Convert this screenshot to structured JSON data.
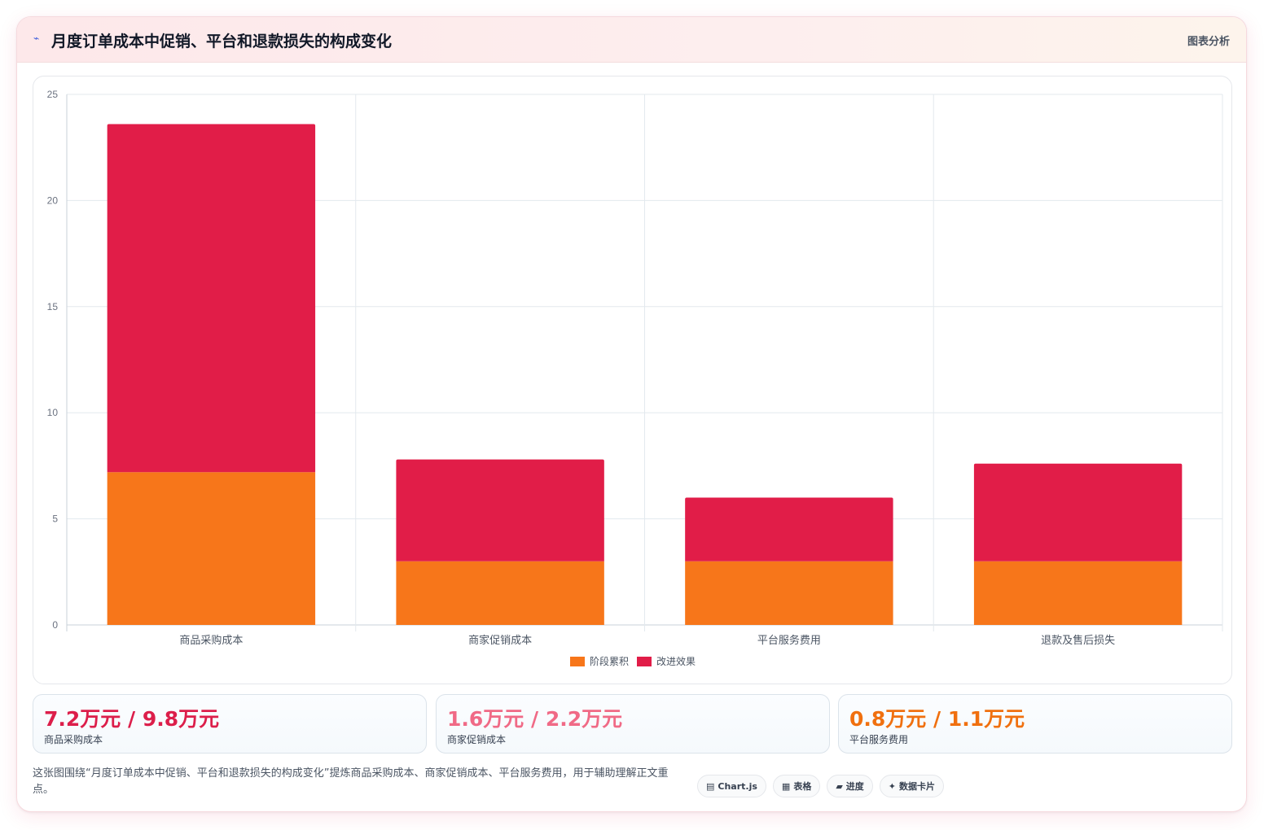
{
  "header": {
    "icon": "line-chart-icon",
    "title": "月度订单成本中促销、平台和退款损失的构成变化",
    "tag": "图表分析"
  },
  "chart_data": {
    "type": "bar",
    "stacked": true,
    "categories": [
      "商品采购成本",
      "商家促销成本",
      "平台服务费用",
      "退款及售后损失"
    ],
    "series": [
      {
        "name": "阶段累积",
        "color": "#f7761a",
        "values": [
          7.2,
          3.0,
          3.0,
          3.0
        ]
      },
      {
        "name": "改进效果",
        "color": "#e11d48",
        "values": [
          16.4,
          4.8,
          3.0,
          4.6
        ]
      }
    ],
    "ylim": [
      0,
      25
    ],
    "yticks": [
      0,
      5,
      10,
      15,
      20,
      25
    ],
    "grid": true,
    "legend": "bottom"
  },
  "stats": [
    {
      "value": "7.2万元 / 9.8万元",
      "label": "商品采购成本",
      "color": "#dc1e4a"
    },
    {
      "value": "1.6万元 / 2.2万元",
      "label": "商家促销成本",
      "color": "#f06a86"
    },
    {
      "value": "0.8万元 / 1.1万元",
      "label": "平台服务费用",
      "color": "#f0700f"
    }
  ],
  "footnote": "这张图围绕“月度订单成本中促销、平台和退款损失的构成变化”提炼商品采购成本、商家促销成本、平台服务费用，用于辅助理解正文重点。",
  "chips": [
    {
      "icon": "chart-icon",
      "glyph": "▤",
      "label": "Chart.js"
    },
    {
      "icon": "table-icon",
      "glyph": "▦",
      "label": "表格"
    },
    {
      "icon": "progress-icon",
      "glyph": "▰",
      "label": "进度"
    },
    {
      "icon": "sparkle-icon",
      "glyph": "✦",
      "label": "数据卡片"
    }
  ]
}
